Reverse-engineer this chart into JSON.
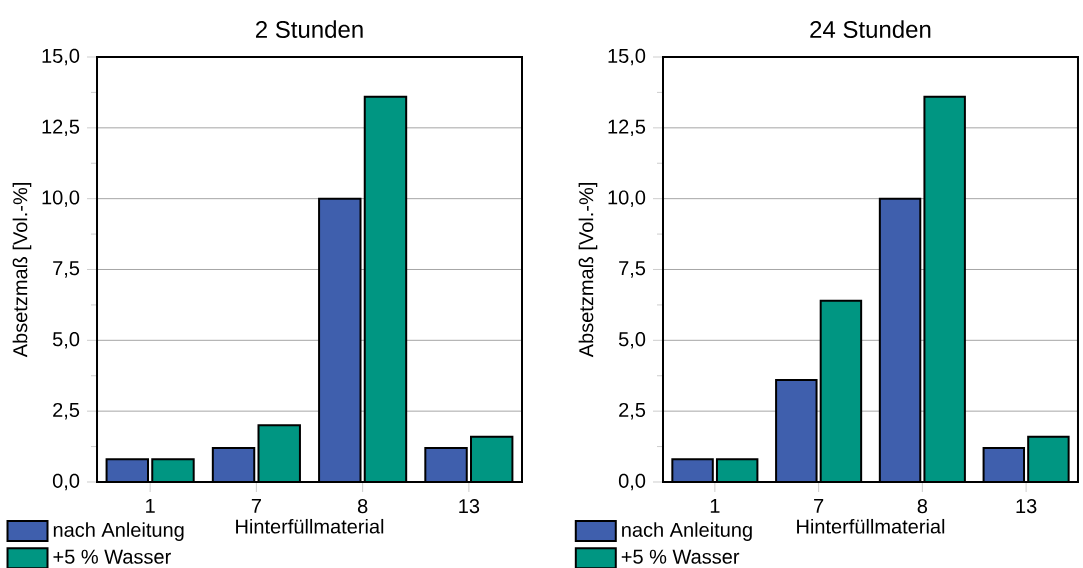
{
  "chart_data": [
    {
      "type": "bar",
      "title": "2 Stunden",
      "xlabel": "Hinterfüllmaterial",
      "ylabel": "Absetzmaß [Vol.-%]",
      "categories": [
        "1",
        "7",
        "8",
        "13"
      ],
      "series": [
        {
          "name": "nach Anleitung",
          "color": "#3f5fad",
          "values": [
            0.8,
            1.2,
            10.0,
            1.2
          ]
        },
        {
          "name": "+5 % Wasser",
          "color": "#009682",
          "values": [
            0.8,
            2.0,
            13.6,
            1.6
          ]
        }
      ],
      "ylim": [
        0,
        15
      ],
      "yticks": [
        {
          "value": 0,
          "label": "0,0"
        },
        {
          "value": 2.5,
          "label": "2,5"
        },
        {
          "value": 5,
          "label": "5,0"
        },
        {
          "value": 7.5,
          "label": "7,5"
        },
        {
          "value": 10,
          "label": "10,0"
        },
        {
          "value": 12.5,
          "label": "12,5"
        },
        {
          "value": 15,
          "label": "15,0"
        }
      ],
      "grid": "y",
      "legend": "bottom left"
    },
    {
      "type": "bar",
      "title": "24 Stunden",
      "xlabel": "Hinterfüllmaterial",
      "ylabel": "Absetzmaß [Vol.-%]",
      "categories": [
        "1",
        "7",
        "8",
        "13"
      ],
      "series": [
        {
          "name": "nach Anleitung",
          "color": "#3f5fad",
          "values": [
            0.8,
            3.6,
            10.0,
            1.2
          ]
        },
        {
          "name": "+5 % Wasser",
          "color": "#009682",
          "values": [
            0.8,
            6.4,
            13.6,
            1.6
          ]
        }
      ],
      "ylim": [
        0,
        15
      ],
      "yticks": [
        {
          "value": 0,
          "label": "0,0"
        },
        {
          "value": 2.5,
          "label": "2,5"
        },
        {
          "value": 5,
          "label": "5,0"
        },
        {
          "value": 7.5,
          "label": "7,5"
        },
        {
          "value": 10,
          "label": "10,0"
        },
        {
          "value": 12.5,
          "label": "12,5"
        },
        {
          "value": 15,
          "label": "15,0"
        }
      ],
      "grid": "y",
      "legend": "bottom left"
    }
  ]
}
